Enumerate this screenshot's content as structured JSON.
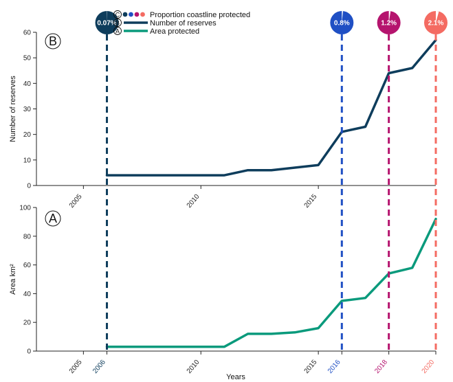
{
  "chart_data": [
    {
      "id": "C",
      "type": "line",
      "panel_label": "B",
      "ylabel": "Number of reserves",
      "xlim": [
        2003,
        2020
      ],
      "ylim": [
        0,
        60
      ],
      "yticks": [
        0,
        10,
        20,
        30,
        40,
        50,
        60
      ],
      "xticks": [
        "2005",
        "2010",
        "2015"
      ],
      "grid": false,
      "color": "#0e3d5c",
      "series": [
        {
          "name": "Number of reserves",
          "x": [
            2006,
            2007,
            2008,
            2009,
            2010,
            2011,
            2012,
            2013,
            2014,
            2015,
            2016,
            2017,
            2018,
            2019,
            2020
          ],
          "values": [
            4,
            4,
            4,
            4,
            4,
            4,
            6,
            6,
            7,
            8,
            21,
            23,
            44,
            46,
            57
          ]
        }
      ]
    },
    {
      "id": "A",
      "type": "line",
      "panel_label": "A",
      "ylabel": "Area km²",
      "xlabel": "Years",
      "xlim": [
        2003,
        2020
      ],
      "ylim": [
        0,
        100
      ],
      "yticks": [
        0,
        20,
        40,
        60,
        80,
        100
      ],
      "xticks": [
        "2005",
        "2006",
        "2010",
        "2015",
        "2016",
        "2018",
        "2020"
      ],
      "grid": false,
      "color": "#0a9a7c",
      "series": [
        {
          "name": "Area protected",
          "x": [
            2006,
            2007,
            2008,
            2009,
            2010,
            2011,
            2012,
            2013,
            2014,
            2015,
            2016,
            2017,
            2018,
            2019,
            2020
          ],
          "values": [
            3,
            3,
            3,
            3,
            3,
            3,
            12,
            12,
            13,
            16,
            35,
            37,
            54,
            58,
            92
          ]
        }
      ]
    }
  ],
  "proportion_coastline": {
    "panel_label": "C",
    "points": [
      {
        "year": 2006,
        "label": "0.07%",
        "fraction": 0.0007,
        "color": "#0e3d5c"
      },
      {
        "year": 2016,
        "label": "0.8%",
        "fraction": 0.008,
        "color": "#1f4fc4"
      },
      {
        "year": 2018,
        "label": "1.2%",
        "fraction": 0.012,
        "color": "#b5146e"
      },
      {
        "year": 2020,
        "label": "2.1%",
        "fraction": 0.021,
        "color": "#f46b62"
      }
    ]
  },
  "legend": {
    "items": [
      {
        "letter": "C",
        "label": "Proportion coastline protected",
        "kind": "dots"
      },
      {
        "letter": "B",
        "label": "Number of reserves",
        "kind": "line",
        "color": "#0e3d5c"
      },
      {
        "letter": "A",
        "label": "Area protected",
        "kind": "line",
        "color": "#0a9a7c"
      }
    ]
  }
}
